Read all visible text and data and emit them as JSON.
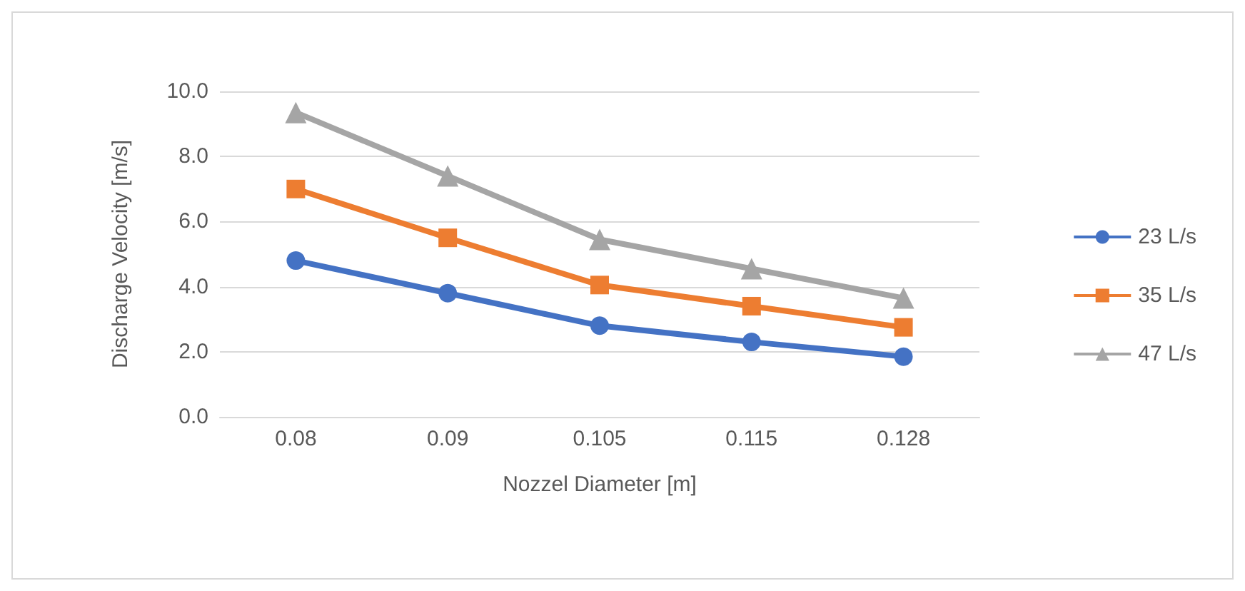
{
  "chart_data": {
    "type": "line",
    "xlabel": "Nozzel Diameter [m]",
    "ylabel": "Discharge Velocity [m/s]",
    "categories": [
      "0.08",
      "0.09",
      "0.105",
      "0.115",
      "0.128"
    ],
    "series": [
      {
        "name": "23 L/s",
        "color": "#4472c4",
        "marker": "circle",
        "values": [
          4.8,
          3.8,
          2.8,
          2.3,
          1.85
        ]
      },
      {
        "name": "35 L/s",
        "color": "#ed7d31",
        "marker": "square",
        "values": [
          7.0,
          5.5,
          4.05,
          3.4,
          2.75
        ]
      },
      {
        "name": "47 L/s",
        "color": "#a5a5a5",
        "marker": "triangle",
        "values": [
          9.35,
          7.4,
          5.45,
          4.55,
          3.65
        ]
      }
    ],
    "ylim": [
      0,
      10
    ],
    "yticks": [
      {
        "value": 0,
        "label": "0.0"
      },
      {
        "value": 2,
        "label": "2.0"
      },
      {
        "value": 4,
        "label": "4.0"
      },
      {
        "value": 6,
        "label": "6.0"
      },
      {
        "value": 8,
        "label": "8.0"
      },
      {
        "value": 10,
        "label": "10.0"
      }
    ],
    "grid": "y",
    "legend": "right"
  }
}
